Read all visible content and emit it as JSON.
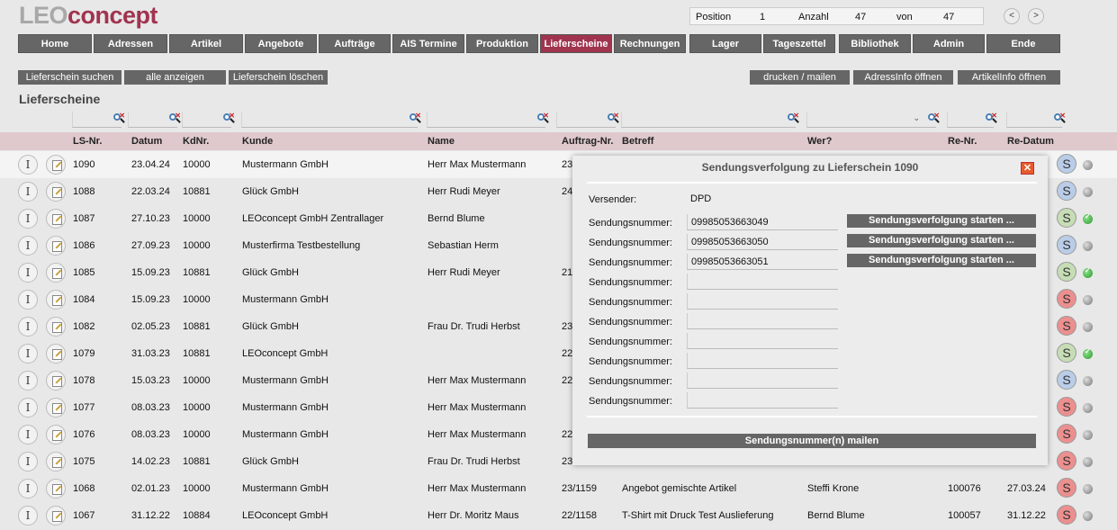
{
  "logo": {
    "part1": "LEO",
    "part2": "concept"
  },
  "position_bar": {
    "position_label": "Position",
    "position": "1",
    "anzahl_label": "Anzahl",
    "anzahl": "47",
    "von_label": "von",
    "von": "47"
  },
  "nav_arrows": {
    "prev": "<",
    "next": ">"
  },
  "menu": [
    {
      "label": "Home"
    },
    {
      "label": "Adressen"
    },
    {
      "label": "Artikel"
    },
    {
      "label": "Angebote"
    },
    {
      "label": "Aufträge"
    },
    {
      "label": "AIS Termine"
    },
    {
      "label": "Produktion"
    },
    {
      "label": "Lieferscheine"
    },
    {
      "label": "Rechnungen"
    },
    {
      "label": "Lager"
    },
    {
      "label": "Tageszettel"
    },
    {
      "label": "Bibliothek"
    },
    {
      "label": "Admin"
    },
    {
      "label": "Ende"
    }
  ],
  "toolbar": {
    "search": "Lieferschein suchen",
    "show_all": "alle anzeigen",
    "delete": "Lieferschein löschen",
    "print": "drucken / mailen",
    "address_info": "AdressInfo öffnen",
    "article_info": "ArtikelInfo öffnen"
  },
  "page_title": "Lieferscheine",
  "columns": [
    "LS-Nr.",
    "Datum",
    "KdNr.",
    "Kunde",
    "Name",
    "Auftrag-Nr.",
    "Betreff",
    "Wer?",
    "Re-Nr.",
    "Re-Datum"
  ],
  "row_icons": {
    "info": "I",
    "status": "S"
  },
  "rows": [
    {
      "ls": "1090",
      "datum": "23.04.24",
      "kdnr": "10000",
      "kunde": "Mustermann GmbH",
      "name": "Herr Max Mustermann",
      "auftrag": "23",
      "betreff": "",
      "wer": "",
      "renr": "",
      "redatum": "",
      "s": "blue",
      "dot": "grey"
    },
    {
      "ls": "1088",
      "datum": "22.03.24",
      "kdnr": "10881",
      "kunde": "Glück GmbH",
      "name": "Herr Rudi Meyer",
      "auftrag": "24",
      "betreff": "",
      "wer": "",
      "renr": "",
      "redatum": "",
      "s": "blue",
      "dot": "grey"
    },
    {
      "ls": "1087",
      "datum": "27.10.23",
      "kdnr": "10000",
      "kunde": "LEOconcept GmbH Zentrallager",
      "name": "Bernd Blume",
      "auftrag": "",
      "betreff": "",
      "wer": "",
      "renr": "",
      "redatum": "",
      "s": "green",
      "dot": "green"
    },
    {
      "ls": "1086",
      "datum": "27.09.23",
      "kdnr": "10000",
      "kunde": "Musterfirma Testbestellung",
      "name": "Sebastian Herm",
      "auftrag": "",
      "betreff": "",
      "wer": "",
      "renr": "",
      "redatum": "",
      "s": "blue",
      "dot": "grey"
    },
    {
      "ls": "1085",
      "datum": "15.09.23",
      "kdnr": "10881",
      "kunde": "Glück GmbH",
      "name": "Herr Rudi Meyer",
      "auftrag": "21",
      "betreff": "",
      "wer": "",
      "renr": "",
      "redatum": "",
      "s": "green",
      "dot": "green"
    },
    {
      "ls": "1084",
      "datum": "15.09.23",
      "kdnr": "10000",
      "kunde": "Mustermann GmbH",
      "name": "",
      "auftrag": "",
      "betreff": "",
      "wer": "",
      "renr": "",
      "redatum": "",
      "s": "red",
      "dot": "grey"
    },
    {
      "ls": "1082",
      "datum": "02.05.23",
      "kdnr": "10881",
      "kunde": "Glück GmbH",
      "name": "Frau Dr. Trudi Herbst",
      "auftrag": "23",
      "betreff": "",
      "wer": "",
      "renr": "",
      "redatum": "",
      "s": "red",
      "dot": "grey"
    },
    {
      "ls": "1079",
      "datum": "31.03.23",
      "kdnr": "10881",
      "kunde": "LEOconcept GmbH",
      "name": "",
      "auftrag": "22",
      "betreff": "",
      "wer": "",
      "renr": "",
      "redatum": "",
      "s": "green",
      "dot": "green"
    },
    {
      "ls": "1078",
      "datum": "15.03.23",
      "kdnr": "10000",
      "kunde": "Mustermann GmbH",
      "name": "Herr Max Mustermann",
      "auftrag": "22",
      "betreff": "",
      "wer": "",
      "renr": "",
      "redatum": "",
      "s": "blue",
      "dot": "grey"
    },
    {
      "ls": "1077",
      "datum": "08.03.23",
      "kdnr": "10000",
      "kunde": "Mustermann GmbH",
      "name": "Herr Max Mustermann",
      "auftrag": "",
      "betreff": "",
      "wer": "",
      "renr": "",
      "redatum": "",
      "s": "red",
      "dot": "grey"
    },
    {
      "ls": "1076",
      "datum": "08.03.23",
      "kdnr": "10000",
      "kunde": "Mustermann GmbH",
      "name": "Herr Max Mustermann",
      "auftrag": "22",
      "betreff": "",
      "wer": "",
      "renr": "",
      "redatum": "",
      "s": "red",
      "dot": "grey"
    },
    {
      "ls": "1075",
      "datum": "14.02.23",
      "kdnr": "10881",
      "kunde": "Glück GmbH",
      "name": "Frau Dr. Trudi Herbst",
      "auftrag": "23",
      "betreff": "",
      "wer": "",
      "renr": "",
      "redatum": "",
      "s": "red",
      "dot": "grey"
    },
    {
      "ls": "1068",
      "datum": "02.01.23",
      "kdnr": "10000",
      "kunde": "Mustermann GmbH",
      "name": "Herr Max Mustermann",
      "auftrag": "23/1159",
      "betreff": "Angebot gemischte Artikel",
      "wer": "Steffi Krone",
      "renr": "100076",
      "redatum": "27.03.24",
      "s": "red",
      "dot": "grey"
    },
    {
      "ls": "1067",
      "datum": "31.12.22",
      "kdnr": "10884",
      "kunde": "LEOconcept GmbH",
      "name": "Herr Dr. Moritz Maus",
      "auftrag": "22/1158",
      "betreff": "T-Shirt mit Druck Test Auslieferung",
      "wer": "Bernd Blume",
      "renr": "100057",
      "redatum": "31.12.22",
      "s": "red",
      "dot": "grey"
    }
  ],
  "dialog": {
    "title": "Sendungsverfolgung zu Lieferschein 1090",
    "close": "✕",
    "versender_label": "Versender:",
    "versender": "DPD",
    "tracking_label": "Sendungsnummer:",
    "tracking_numbers": [
      "09985053663049",
      "09985053663050",
      "09985053663051",
      "",
      "",
      "",
      "",
      "",
      "",
      ""
    ],
    "track_button": "Sendungsverfolgung starten ...",
    "mail_button": "Sendungsnummer(n) mailen"
  },
  "colors": {
    "accent": "#a0344f",
    "button": "#666666",
    "header_row": "#dfc9cd"
  }
}
